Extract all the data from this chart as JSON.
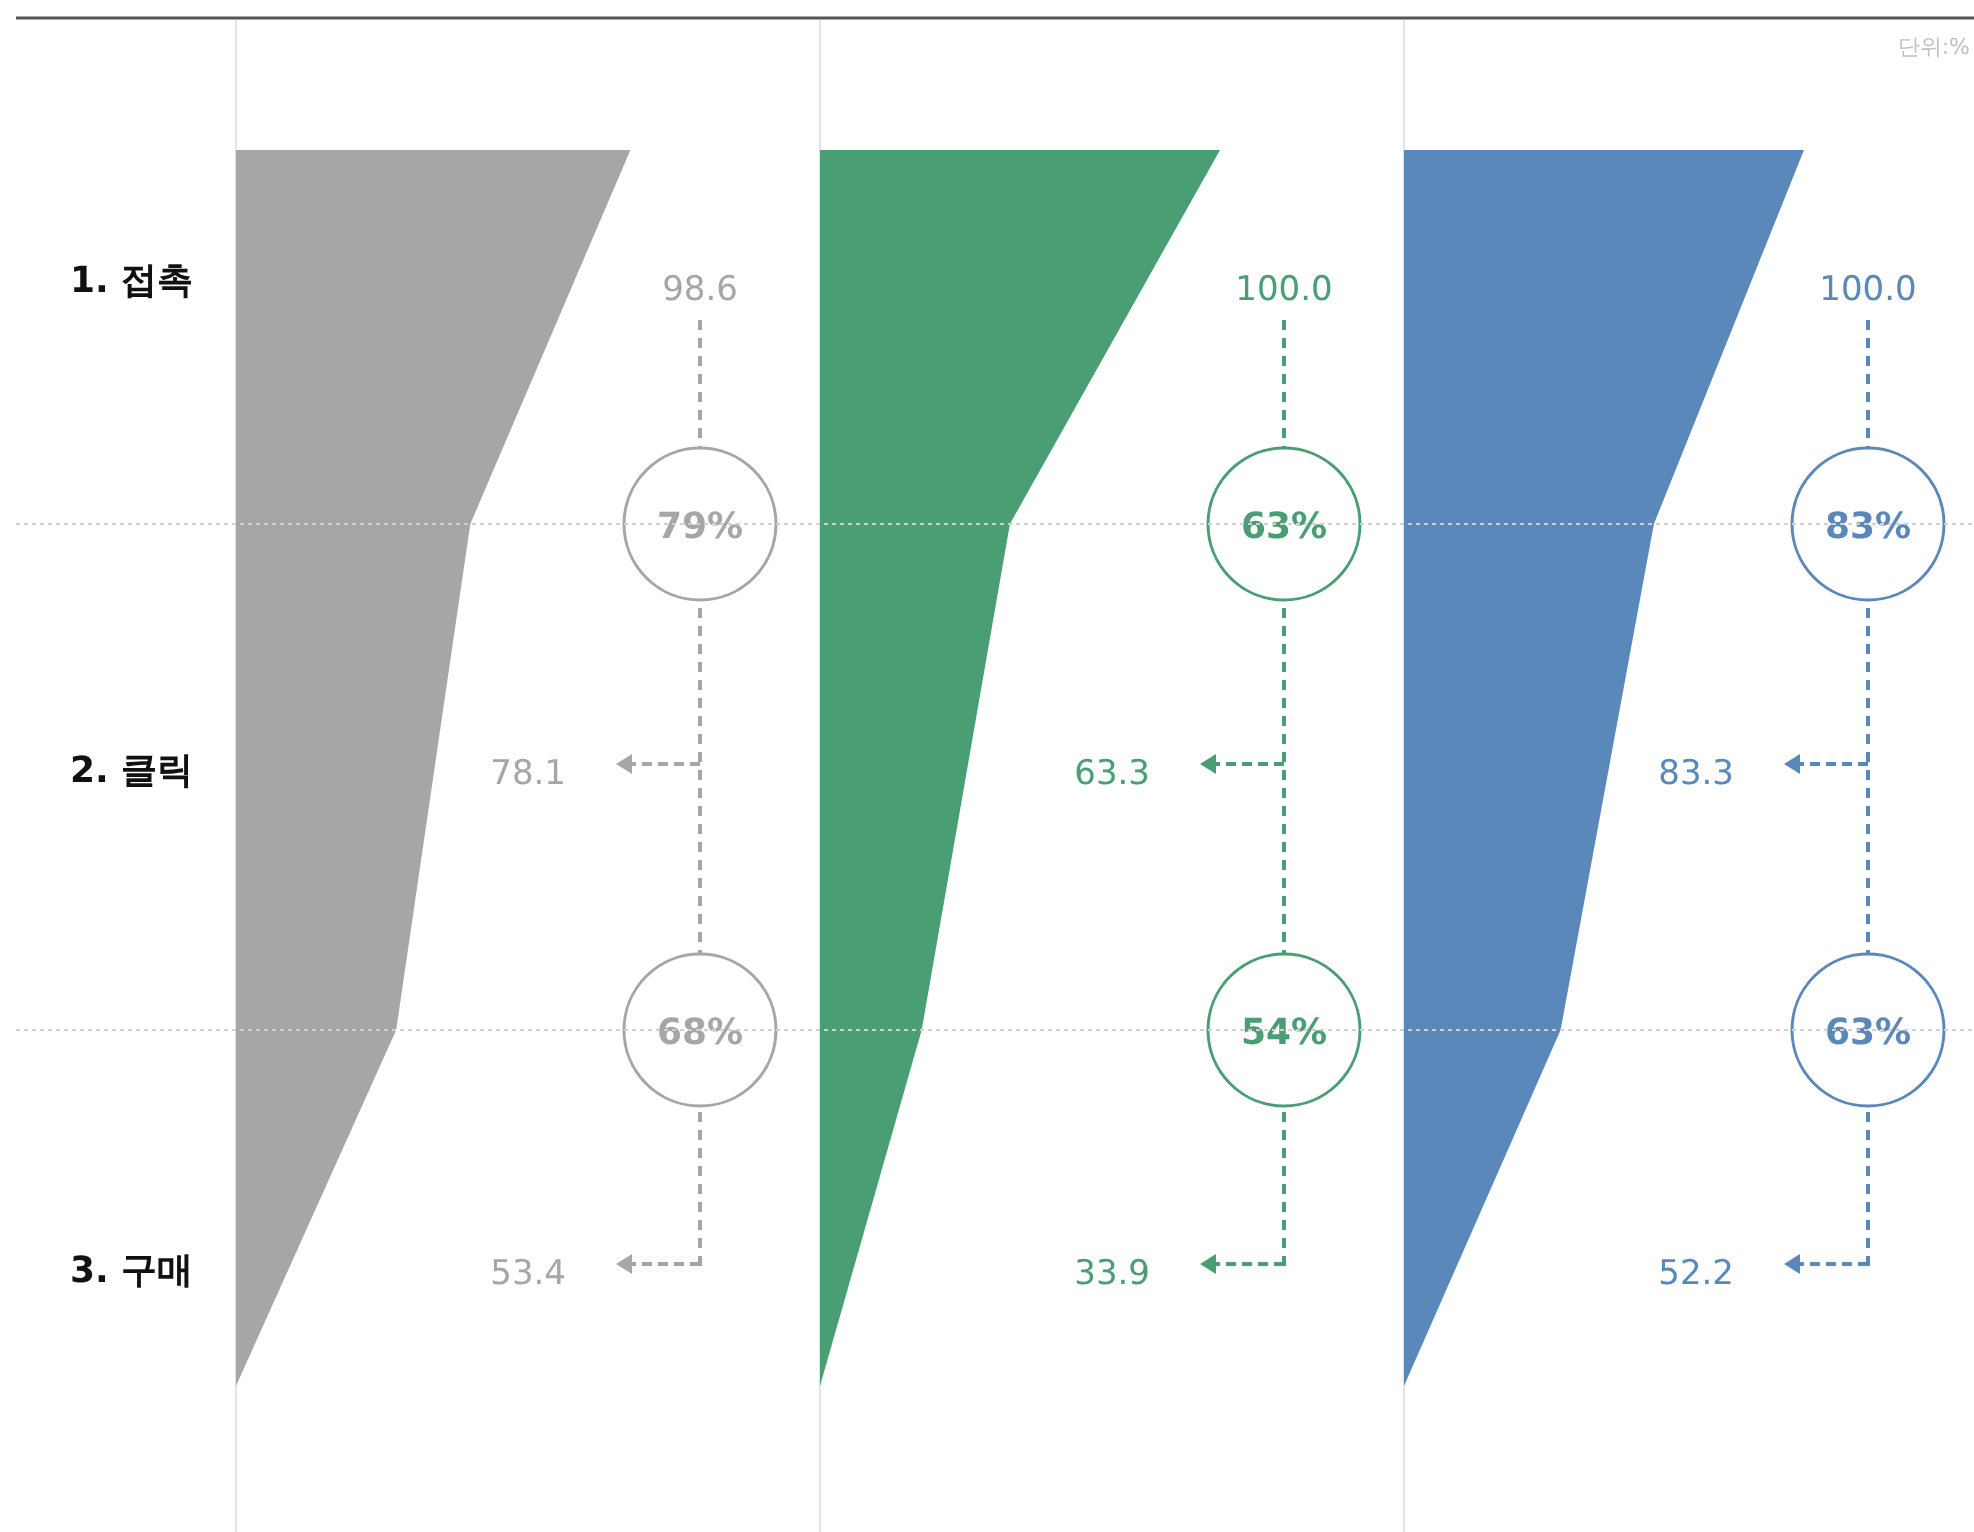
{
  "chart_data": {
    "type": "other",
    "categories": [
      "1. 접촉",
      "2. 클릭",
      "3. 구매"
    ],
    "series": [
      {
        "color": "#a6a6a6",
        "values": [
          98.6,
          78.1,
          53.4
        ],
        "value_labels": [
          "98.6",
          "78.1",
          "53.4"
        ]
      },
      {
        "color": "#4a9e73",
        "values": [
          100.0,
          63.3,
          33.9
        ],
        "value_labels": [
          "100.0",
          "63.3",
          "33.9"
        ]
      },
      {
        "color": "#5b88bb",
        "values": [
          100.0,
          83.3,
          52.2
        ],
        "value_labels": [
          "100.0",
          "83.3",
          "52.2"
        ]
      }
    ],
    "annotations": [
      "단위:%",
      "79%",
      "68%",
      "63%",
      "54%",
      "83%",
      "63%"
    ]
  }
}
